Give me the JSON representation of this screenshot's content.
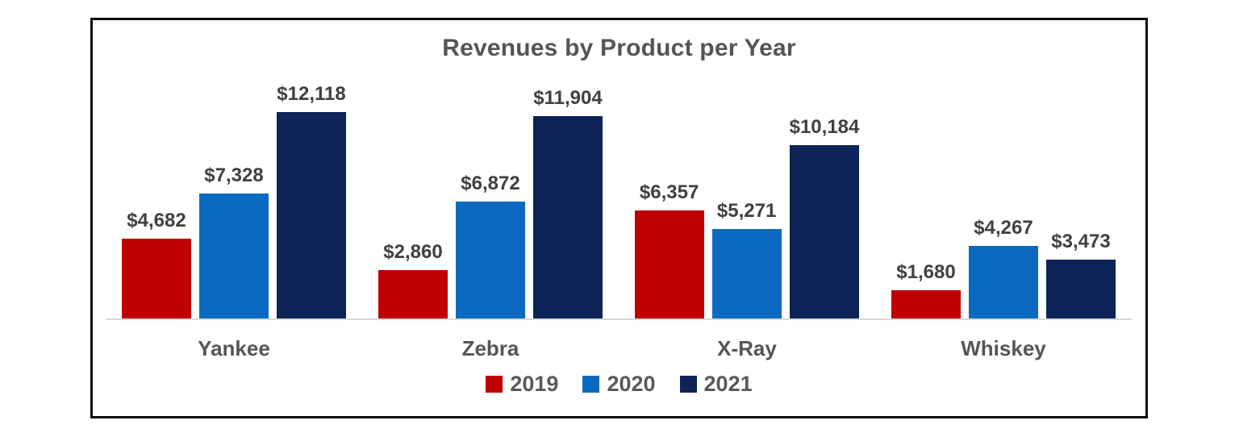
{
  "title": "Revenues by Product per Year",
  "chart_data": {
    "type": "bar",
    "title": "Revenues by Product per Year",
    "categories": [
      "Yankee",
      "Zebra",
      "X-Ray",
      "Whiskey"
    ],
    "series": [
      {
        "name": "2019",
        "color": "#c00000",
        "values": [
          4682,
          2860,
          6357,
          1680
        ],
        "labels": [
          "$4,682",
          "$2,860",
          "$6,357",
          "$1,680"
        ]
      },
      {
        "name": "2020",
        "color": "#0b6abf",
        "values": [
          7328,
          6872,
          5271,
          4267
        ],
        "labels": [
          "$7,328",
          "$6,872",
          "$5,271",
          "$4,267"
        ]
      },
      {
        "name": "2021",
        "color": "#0e2356",
        "values": [
          12118,
          11904,
          10184,
          3473
        ],
        "labels": [
          "$12,118",
          "$11,904",
          "$10,184",
          "$3,473"
        ]
      }
    ],
    "xlabel": "",
    "ylabel": "",
    "ylim": [
      0,
      14700
    ],
    "grid": false,
    "y_axis_visible": false,
    "data_labels_visible": true,
    "legend_position": "bottom"
  },
  "colors": {
    "frame_border": "#0d0d0d",
    "axis_line": "#d9d9d9",
    "title_text": "#555555",
    "value_label_text": "#404040",
    "legend_text": "#595959",
    "background": "#ffffff"
  }
}
